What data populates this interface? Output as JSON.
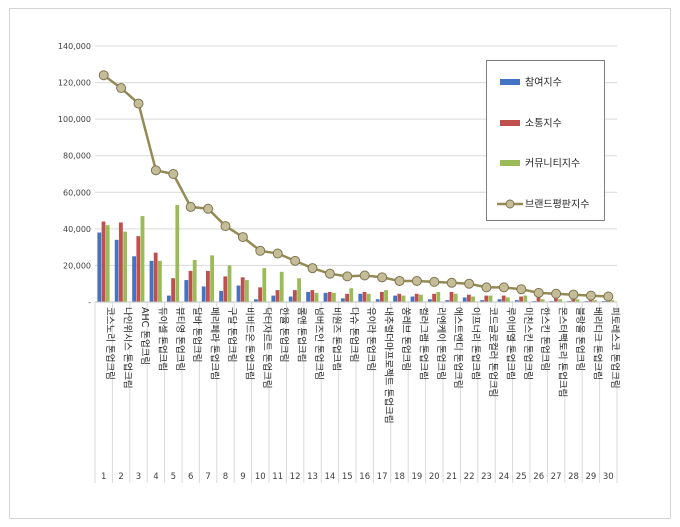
{
  "chart_data": {
    "type": "bar",
    "ylim": [
      0,
      140000
    ],
    "yticks": [
      "140,000",
      "120,000",
      "100,000",
      "80,000",
      "60,000",
      "40,000",
      "20,000",
      "-"
    ],
    "ytick_values": [
      140000,
      120000,
      100000,
      80000,
      60000,
      40000,
      20000,
      0
    ],
    "grid": true,
    "legend_position": "top-right",
    "categories": [
      "코스노리 톤업크림",
      "나인위시스 톤업크림",
      "AHC 톤업크림",
      "듀이셀 톤업크림",
      "뷰티영 톤업크림",
      "달바 톤업크림",
      "페리페라 톤업크림",
      "구달 톤업크림",
      "비비드온 톤업크림",
      "닥터자르트 톤업크림",
      "한율 톤업크림",
      "롬앤 톤업크림",
      "넘버즈인 톤업크림",
      "비원즈 톤업크림",
      "다슈 톤업크림",
      "유이라 톤업크림",
      "내추럴더마프로젝트 톤업크림",
      "쏭레브 톤업크림",
      "컬러그램 톤업크림",
      "리엔케이 톤업크림",
      "에스트엔디 톤업크림",
      "이프너리 톤업크림",
      "코드글로컬러 톤업크림",
      "루이비엘 톤업크림",
      "미친스킨 톤업크림",
      "한스킨 톤업크림",
      "몬스터팩토리 톤업크림",
      "블랑올 톤업크림",
      "베리디크 톤업크림",
      "피토레스코 톤업크림"
    ],
    "numbers": [
      "1",
      "2",
      "3",
      "4",
      "5",
      "6",
      "7",
      "8",
      "9",
      "10",
      "11",
      "12",
      "13",
      "14",
      "15",
      "16",
      "17",
      "18",
      "19",
      "20",
      "21",
      "22",
      "23",
      "24",
      "25",
      "26",
      "27",
      "28",
      "29",
      "30"
    ],
    "series": [
      {
        "name": "참여지수",
        "kind": "bar",
        "color": "#4472c4",
        "values": [
          38000,
          34000,
          25000,
          22500,
          3500,
          12000,
          8500,
          6000,
          9000,
          1500,
          3500,
          3000,
          5500,
          5000,
          2000,
          4500,
          1500,
          3500,
          3000,
          1500,
          1000,
          2500,
          1000,
          1500,
          1000,
          500,
          500,
          500,
          500,
          500
        ]
      },
      {
        "name": "소통지수",
        "kind": "bar",
        "color": "#c0504d",
        "values": [
          44000,
          43500,
          36000,
          27000,
          13000,
          17000,
          17000,
          14000,
          13500,
          8000,
          6500,
          6500,
          6500,
          5500,
          4500,
          5500,
          5500,
          4500,
          4500,
          4500,
          5500,
          4000,
          3500,
          3500,
          3000,
          2500,
          2500,
          2000,
          2000,
          1500
        ]
      },
      {
        "name": "커뮤니티지수",
        "kind": "bar",
        "color": "#9bbb59",
        "values": [
          42000,
          38500,
          47000,
          22500,
          53000,
          23000,
          25500,
          20000,
          12000,
          18500,
          16500,
          13000,
          5000,
          5000,
          7500,
          4500,
          6500,
          3500,
          4000,
          5500,
          4500,
          3000,
          3500,
          2500,
          3500,
          1500,
          1500,
          1500,
          1000,
          1000
        ]
      },
      {
        "name": "브랜드평판지수",
        "kind": "line",
        "color": "#948a54",
        "values": [
          124000,
          117000,
          108500,
          72000,
          70000,
          52000,
          51000,
          41500,
          35500,
          28000,
          26500,
          22500,
          18500,
          15500,
          14000,
          14500,
          13500,
          11500,
          11500,
          11000,
          10500,
          10000,
          8000,
          8000,
          7000,
          5000,
          4500,
          4000,
          3500,
          3000
        ]
      }
    ]
  }
}
